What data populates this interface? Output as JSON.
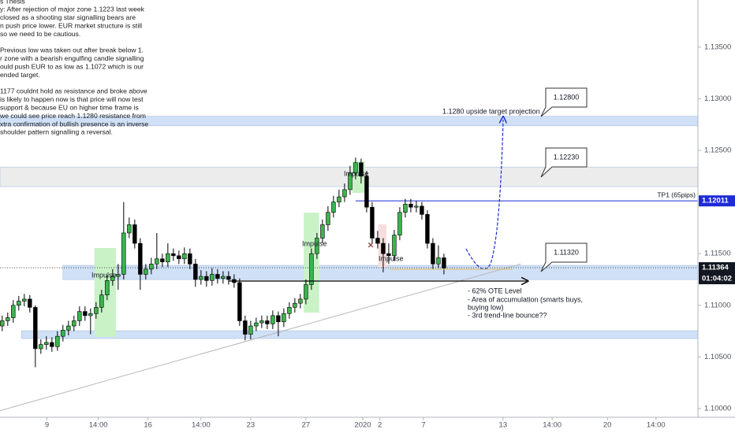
{
  "chart_data": {
    "type": "candlestick",
    "up_color": "#3cb44b",
    "down_color": "#000000",
    "open": [
      1.108,
      1.1085,
      1.1088,
      1.11,
      1.1104,
      1.1106,
      1.1098,
      1.1058,
      1.1062,
      1.1064,
      1.106,
      1.107,
      1.1076,
      1.108,
      1.1085,
      1.1094,
      1.109,
      1.1092,
      1.1098,
      1.111,
      1.1124,
      1.1128,
      1.113,
      1.117,
      1.1178,
      1.116,
      1.113,
      1.1135,
      1.114,
      1.1145,
      1.1142,
      1.115,
      1.1148,
      1.1145,
      1.115,
      1.114,
      1.1125,
      1.1128,
      1.1124,
      1.113,
      1.1126,
      1.1128,
      1.1125,
      1.1122,
      1.1085,
      1.1072,
      1.108,
      1.1083,
      1.1085,
      1.1082,
      1.109,
      1.1084,
      1.1092,
      1.1098,
      1.1102,
      1.1106,
      1.112,
      1.115,
      1.1165,
      1.1178,
      1.119,
      1.12,
      1.1205,
      1.1212,
      1.1228,
      1.1238,
      1.1225,
      1.1195,
      1.1165,
      1.116,
      1.115,
      1.1148,
      1.1168,
      1.119,
      1.1198,
      1.1195,
      1.1196,
      1.1188,
      1.116,
      1.114,
      1.1146
    ],
    "high": [
      1.109,
      1.1093,
      1.1105,
      1.1109,
      1.1111,
      1.111,
      1.11,
      1.1067,
      1.107,
      1.1069,
      1.1075,
      1.1081,
      1.1085,
      1.109,
      1.1099,
      1.1099,
      1.1097,
      1.1103,
      1.1115,
      1.1129,
      1.1135,
      1.114,
      1.12,
      1.1185,
      1.1183,
      1.1165,
      1.114,
      1.1146,
      1.117,
      1.115,
      1.116,
      1.1155,
      1.1153,
      1.1156,
      1.1155,
      1.1145,
      1.1134,
      1.1133,
      1.1136,
      1.1135,
      1.1133,
      1.1133,
      1.113,
      1.1126,
      1.109,
      1.1085,
      1.1088,
      1.109,
      1.109,
      1.1095,
      1.1094,
      1.1097,
      1.1103,
      1.1107,
      1.1111,
      1.1125,
      1.1155,
      1.117,
      1.1183,
      1.1196,
      1.1206,
      1.1212,
      1.1218,
      1.1235,
      1.1243,
      1.1242,
      1.123,
      1.12,
      1.1172,
      1.1165,
      1.116,
      1.1173,
      1.1195,
      1.1203,
      1.1203,
      1.1201,
      1.12,
      1.1192,
      1.1165,
      1.1158,
      1.115
    ],
    "low": [
      1.1075,
      1.108,
      1.1083,
      1.1095,
      1.1099,
      1.1093,
      1.104,
      1.1053,
      1.1057,
      1.1055,
      1.1056,
      1.1065,
      1.1071,
      1.1075,
      1.108,
      1.1085,
      1.1072,
      1.1087,
      1.1093,
      1.1105,
      1.1119,
      1.1115,
      1.1125,
      1.1165,
      1.1155,
      1.1115,
      1.1125,
      1.113,
      1.1135,
      1.1137,
      1.1137,
      1.1143,
      1.114,
      1.114,
      1.1135,
      1.1118,
      1.112,
      1.1118,
      1.1119,
      1.1121,
      1.1121,
      1.112,
      1.1117,
      1.108,
      1.1066,
      1.1067,
      1.1075,
      1.1078,
      1.1077,
      1.1077,
      1.107,
      1.1079,
      1.1087,
      1.1093,
      1.1097,
      1.1101,
      1.1115,
      1.1145,
      1.116,
      1.1172,
      1.1185,
      1.1195,
      1.12,
      1.1207,
      1.1222,
      1.1218,
      1.119,
      1.116,
      1.1155,
      1.1132,
      1.114,
      1.1143,
      1.1163,
      1.1185,
      1.119,
      1.119,
      1.1183,
      1.1155,
      1.1135,
      1.1136,
      1.113
    ],
    "close": [
      1.1085,
      1.1088,
      1.11,
      1.1104,
      1.1106,
      1.1098,
      1.1058,
      1.1062,
      1.1064,
      1.106,
      1.107,
      1.1076,
      1.108,
      1.1085,
      1.1094,
      1.109,
      1.1092,
      1.1098,
      1.111,
      1.1124,
      1.1128,
      1.113,
      1.117,
      1.1178,
      1.116,
      1.113,
      1.1135,
      1.114,
      1.1145,
      1.1142,
      1.115,
      1.1148,
      1.1145,
      1.115,
      1.114,
      1.1125,
      1.1128,
      1.1124,
      1.113,
      1.1126,
      1.1128,
      1.1125,
      1.1122,
      1.1085,
      1.1072,
      1.108,
      1.1083,
      1.1085,
      1.1082,
      1.109,
      1.1084,
      1.1092,
      1.1098,
      1.1102,
      1.1106,
      1.112,
      1.115,
      1.1165,
      1.1178,
      1.119,
      1.12,
      1.1205,
      1.1212,
      1.1228,
      1.1238,
      1.1225,
      1.1195,
      1.1165,
      1.116,
      1.115,
      1.1148,
      1.1168,
      1.119,
      1.1198,
      1.1195,
      1.1196,
      1.1188,
      1.116,
      1.114,
      1.1146,
      1.1136
    ],
    "xlim": [
      -0.4,
      126
    ],
    "xticks": [
      {
        "value": 8.1,
        "label": "9"
      },
      {
        "value": 17.4,
        "label": "14:00"
      },
      {
        "value": 26.4,
        "label": "16"
      },
      {
        "value": 36,
        "label": "14:00"
      },
      {
        "value": 45,
        "label": "23"
      },
      {
        "value": 55,
        "label": "27"
      },
      {
        "value": 65.3,
        "label": "2020"
      },
      {
        "value": 68.4,
        "label": "2"
      },
      {
        "value": 76.3,
        "label": "7"
      },
      {
        "value": 90.7,
        "label": "13"
      },
      {
        "value": 99.6,
        "label": "14:00"
      },
      {
        "value": 109.6,
        "label": "20"
      },
      {
        "value": 118.4,
        "label": "14:00"
      }
    ],
    "ylim": [
      1.09916,
      1.13956
    ],
    "yticks": [
      {
        "value": 1.1,
        "label": "1.10000"
      },
      {
        "value": 1.105,
        "label": "1.10500"
      },
      {
        "value": 1.11,
        "label": "1.11000"
      },
      {
        "value": 1.115,
        "label": "1.11500"
      },
      {
        "value": 1.125,
        "label": "1.12500"
      },
      {
        "value": 1.13,
        "label": "1.13000"
      },
      {
        "value": 1.135,
        "label": "1.13500"
      }
    ],
    "zones": [
      {
        "from": -0.4,
        "y": [
          1.12738,
          1.1283
        ],
        "color": "#cfe0f7"
      },
      {
        "from": -0.4,
        "y": [
          1.12149,
          1.12339
        ],
        "color": "#ececec"
      },
      {
        "from": 11,
        "y": [
          1.11249,
          1.11387
        ],
        "color": "#cfe0f7"
      },
      {
        "from": 3.5,
        "y": [
          1.10678,
          1.10754
        ],
        "color": "#cfe0f7"
      }
    ],
    "boxes": [
      {
        "x": [
          16.7,
          20.6
        ],
        "y": [
          1.10693,
          1.11555
        ],
        "color": "#c9f2c7"
      },
      {
        "x": [
          54.6,
          57.4
        ],
        "y": [
          1.10929,
          1.11897
        ],
        "color": "#c9f2c7"
      },
      {
        "x": [
          63.4,
          65.7
        ],
        "y": [
          1.12088,
          1.12393
        ],
        "color": "#c9f2c7"
      },
      {
        "x": [
          68.1,
          69.6
        ],
        "y": [
          1.11364,
          1.11783
        ],
        "color": "#f6dede"
      }
    ],
    "trendline": {
      "x": [
        -0.4,
        93.9
      ],
      "y": [
        1.0998,
        1.114
      ]
    },
    "tp_line": {
      "name": "TP1 (65pips)",
      "value": 1.12011,
      "label": "1.12011",
      "color": "#1e2bd6"
    },
    "last_price": {
      "value": 1.11364,
      "label": "1.11364",
      "timer": "01:04:02"
    }
  },
  "annotations": {
    "thesis": [
      "s Thesis",
      "y: After rejection of major zone 1.1223 last week",
      "closed as a shooting star signalling bears are",
      "n push price lower. EUR market structure is still",
      "so we need to be cautious.",
      "Previous low was taken out after break below 1.",
      "r zone with a bearish engulfing candle signalling",
      "ould push EUR to as low as 1.1072 which is our",
      "ended target.",
      "1177 couldnt hold as resistance and broke above",
      " is likely to happen now is that price will now test",
      " support & because EU on higher time frame is",
      "we could see price reach 1.1280 resistance from",
      "xtra confirmation of bullish presence is an inverse",
      "shoulder pattern signalling a reversal."
    ],
    "target": "1.1280 upside target projection",
    "impulse": [
      "Impulse",
      "Impulse",
      "Impulse",
      "Impulse"
    ],
    "callouts": [
      "1.12800",
      "1.12230",
      "1.11320"
    ],
    "ote": [
      "- 62% OTE Level",
      "- Area of accumulation (smarts buys,",
      "buying low)",
      "- 3rd trend-line bounce??"
    ]
  }
}
